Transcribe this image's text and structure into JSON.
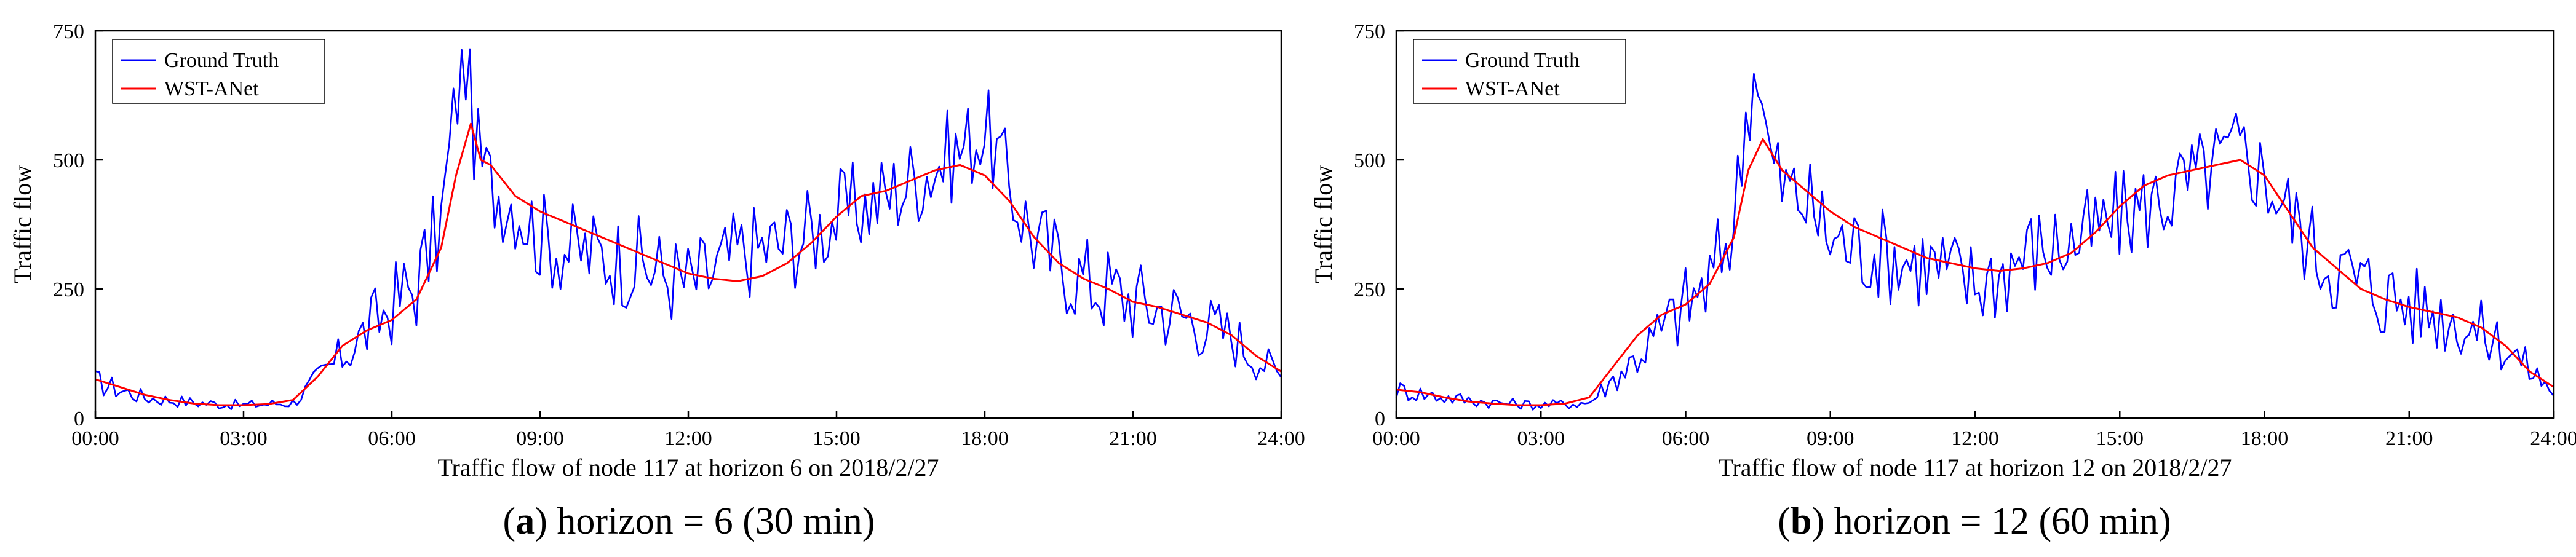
{
  "chart_data": [
    {
      "id": "a",
      "type": "line",
      "title": "",
      "xlabel": "Traffic flow of node 117 at horizon 6 on 2018/2/27",
      "ylabel": "Traffic flow",
      "caption_letter": "a",
      "caption_rest": " horizon = 6 (30 min)",
      "xlim": [
        0,
        24
      ],
      "ylim": [
        0,
        750
      ],
      "x_tick_values": [
        0,
        3,
        6,
        9,
        12,
        15,
        18,
        21,
        24
      ],
      "x_tick_labels": [
        "00:00",
        "03:00",
        "06:00",
        "09:00",
        "12:00",
        "15:00",
        "18:00",
        "21:00",
        "24:00"
      ],
      "y_tick_values": [
        0,
        250,
        500,
        750
      ],
      "y_tick_labels": [
        "0",
        "250",
        "500",
        "750"
      ],
      "legend_position": "top-left",
      "series": [
        {
          "name": "Ground Truth",
          "color": "#0000ff",
          "x": [
            0,
            1,
            2,
            3,
            4,
            5,
            6,
            6.5,
            7,
            7.3,
            7.5,
            7.7,
            8,
            8.5,
            9,
            9.5,
            10,
            10.5,
            11,
            11.5,
            12,
            12.5,
            13,
            13.5,
            14,
            14.5,
            15,
            15.5,
            16,
            16.5,
            17,
            17.5,
            18,
            18.5,
            19,
            19.5,
            20,
            21,
            22,
            23,
            24
          ],
          "values": [
            70,
            40,
            30,
            25,
            30,
            120,
            220,
            260,
            380,
            620,
            690,
            520,
            450,
            420,
            350,
            330,
            320,
            310,
            300,
            280,
            260,
            280,
            320,
            330,
            340,
            360,
            390,
            410,
            430,
            460,
            490,
            520,
            560,
            450,
            350,
            300,
            270,
            230,
            200,
            160,
            80
          ]
        },
        {
          "name": "WST-ANet",
          "color": "#ff0000",
          "x": [
            0,
            0.5,
            1,
            1.5,
            2,
            2.5,
            3,
            3.5,
            4,
            4.5,
            5,
            5.5,
            6,
            6.5,
            7,
            7.3,
            7.6,
            7.8,
            8,
            8.5,
            9,
            9.5,
            10,
            10.5,
            11,
            11.5,
            12,
            12.5,
            13,
            13.5,
            14,
            14.5,
            15,
            15.5,
            16,
            16.5,
            17,
            17.5,
            18,
            18.5,
            19,
            19.5,
            20,
            20.5,
            21,
            21.5,
            22,
            22.5,
            23,
            23.5,
            24
          ],
          "values": [
            75,
            60,
            45,
            35,
            28,
            25,
            25,
            27,
            35,
            80,
            140,
            170,
            190,
            230,
            330,
            470,
            570,
            500,
            490,
            430,
            400,
            380,
            360,
            340,
            320,
            300,
            280,
            270,
            265,
            275,
            300,
            340,
            390,
            430,
            440,
            460,
            480,
            490,
            470,
            420,
            350,
            300,
            270,
            250,
            225,
            215,
            200,
            185,
            160,
            120,
            90
          ]
        }
      ]
    },
    {
      "id": "b",
      "type": "line",
      "title": "",
      "xlabel": "Traffic flow of node 117 at horizon 12 on 2018/2/27",
      "ylabel": "Traffic flow",
      "caption_letter": "b",
      "caption_rest": " horizon = 12 (60 min)",
      "xlim": [
        0,
        24
      ],
      "ylim": [
        0,
        750
      ],
      "x_tick_values": [
        0,
        3,
        6,
        9,
        12,
        15,
        18,
        21,
        24
      ],
      "x_tick_labels": [
        "00:00",
        "03:00",
        "06:00",
        "09:00",
        "12:00",
        "15:00",
        "18:00",
        "21:00",
        "24:00"
      ],
      "y_tick_values": [
        0,
        250,
        500,
        750
      ],
      "y_tick_labels": [
        "0",
        "250",
        "500",
        "750"
      ],
      "legend_position": "top-left",
      "series": [
        {
          "name": "Ground Truth",
          "color": "#0000ff",
          "x": [
            0,
            1,
            2,
            3,
            4,
            5,
            6,
            6.5,
            7,
            7.3,
            7.5,
            7.7,
            8,
            8.5,
            9,
            9.5,
            10,
            10.5,
            11,
            11.5,
            12,
            12.5,
            13,
            13.5,
            14,
            14.5,
            15,
            15.5,
            16,
            16.5,
            17,
            17.5,
            18,
            18.5,
            19,
            19.5,
            20,
            21,
            22,
            23,
            24
          ],
          "values": [
            55,
            40,
            30,
            25,
            30,
            120,
            220,
            260,
            380,
            620,
            690,
            520,
            450,
            420,
            350,
            330,
            320,
            310,
            300,
            280,
            260,
            280,
            320,
            330,
            340,
            360,
            390,
            410,
            430,
            460,
            490,
            520,
            470,
            400,
            330,
            290,
            260,
            220,
            190,
            140,
            50
          ]
        },
        {
          "name": "WST-ANet",
          "color": "#ff0000",
          "x": [
            0,
            0.5,
            1,
            1.5,
            2,
            2.5,
            3,
            3.5,
            4,
            4.5,
            5,
            5.5,
            6,
            6.5,
            7,
            7.3,
            7.6,
            7.8,
            8,
            8.5,
            9,
            9.5,
            10,
            10.5,
            11,
            11.5,
            12,
            12.5,
            13,
            13.5,
            14,
            14.5,
            15,
            15.5,
            16,
            16.5,
            17,
            17.5,
            18,
            18.5,
            19,
            19.5,
            20,
            20.5,
            21,
            21.5,
            22,
            22.5,
            23,
            23.5,
            24
          ],
          "values": [
            55,
            50,
            40,
            32,
            28,
            25,
            25,
            28,
            40,
            100,
            160,
            200,
            220,
            260,
            350,
            480,
            540,
            510,
            480,
            440,
            400,
            370,
            350,
            330,
            310,
            300,
            290,
            285,
            290,
            300,
            320,
            360,
            410,
            450,
            470,
            480,
            490,
            500,
            470,
            400,
            330,
            290,
            250,
            230,
            215,
            205,
            195,
            175,
            140,
            90,
            60
          ]
        }
      ]
    }
  ]
}
